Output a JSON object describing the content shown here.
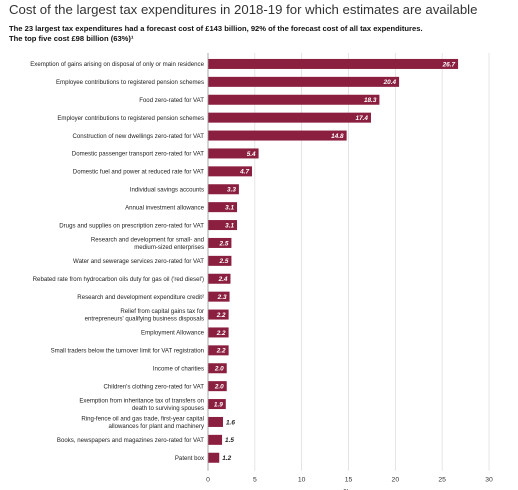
{
  "title": "Cost of the largest tax expenditures in 2018-19 for which estimates are available",
  "subtitle_lines": [
    "The 23 largest tax expenditures had a forecast cost of £143 billion, 92% of the forecast cost of all tax expenditures.",
    "The top five cost £98 billion (63%)¹"
  ],
  "colors": {
    "bar": "#8b1f3f",
    "value_text_inside": "#ffffff",
    "value_text_outside": "#222222",
    "grid": "#d9d9d9"
  },
  "chart_data": {
    "type": "bar",
    "orientation": "horizontal",
    "title": "Cost of the largest tax expenditures in 2018-19 for which estimates are available",
    "subtitle": "The 23 largest tax expenditures had a forecast cost of £143 billion, 92% of the forecast cost of all tax expenditures. The top five cost £98 billion (63%)¹",
    "categories": [
      "Exemption of gains arising on disposal of only or main residence",
      "Employee contributions to registered pension schemes",
      "Food zero-rated for VAT",
      "Employer contributions to registered pension schemes",
      "Construction of new dwellings zero-rated for VAT",
      "Domestic passenger transport zero-rated for VAT",
      "Domestic fuel and power at reduced rate for VAT",
      "Individual savings accounts",
      "Annual investment allowance",
      "Drugs and supplies on prescription zero-rated for VAT",
      "Research and development for small- and medium-sized enterprises",
      "Water and sewerage services zero-rated for VAT",
      "Rebated rate from hydrocarbon oils duty for gas oil ('red diesel')",
      "Research and development expenditure credit²",
      "Relief from capital gains tax for entrepreneurs' qualifying business disposals",
      "Employment Allowance",
      "Small traders below the turnover limit for VAT registration",
      "Income of charities",
      "Children's clothing zero-rated for VAT",
      "Exemption from inheritance tax of transfers on death to surviving spouses",
      "Ring-fence oil and gas trade, first-year capital allowances for plant and machinery",
      "Books, newspapers and magazines zero-rated for VAT",
      "Patent box"
    ],
    "category_lines": [
      [
        "Exemption of gains arising on disposal of only or main residence"
      ],
      [
        "Employee contributions to registered pension schemes"
      ],
      [
        "Food zero-rated for VAT"
      ],
      [
        "Employer contributions to registered pension schemes"
      ],
      [
        "Construction of new dwellings zero-rated for VAT"
      ],
      [
        "Domestic passenger transport zero-rated for VAT"
      ],
      [
        "Domestic fuel and power at reduced rate for VAT"
      ],
      [
        "Individual savings accounts"
      ],
      [
        "Annual investment allowance"
      ],
      [
        "Drugs and supplies on prescription zero-rated for VAT"
      ],
      [
        "Research and development for small- and",
        "medium-sized enterprises"
      ],
      [
        "Water and sewerage services zero-rated for VAT"
      ],
      [
        "Rebated rate from hydrocarbon oils duty for gas oil ('red diesel')"
      ],
      [
        "Research and development expenditure credit²"
      ],
      [
        "Relief from capital gains tax for",
        "entrepreneurs' qualifying business disposals"
      ],
      [
        "Employment Allowance"
      ],
      [
        "Small traders below the turnover limit for VAT registration"
      ],
      [
        "Income of charities"
      ],
      [
        "Children's clothing zero-rated for VAT"
      ],
      [
        "Exemption from inheritance tax of transfers on",
        "death to surviving spouses"
      ],
      [
        "Ring-fence oil and gas trade, first-year capital",
        "allowances for plant and machinery"
      ],
      [
        "Books, newspapers and magazines zero-rated for VAT"
      ],
      [
        "Patent box"
      ]
    ],
    "values": [
      26.7,
      20.4,
      18.3,
      17.4,
      14.8,
      5.4,
      4.7,
      3.3,
      3.1,
      3.1,
      2.5,
      2.5,
      2.4,
      2.3,
      2.2,
      2.2,
      2.2,
      2.0,
      2.0,
      1.9,
      1.6,
      1.5,
      1.2
    ],
    "value_labels": [
      "26.7",
      "20.4",
      "18.3",
      "17.4",
      "14.8",
      "5.4",
      "4.7",
      "3.3",
      "3.1",
      "3.1",
      "2.5",
      "2.5",
      "2.4",
      "2.3",
      "2.2",
      "2.2",
      "2.2",
      "2.0",
      "2.0",
      "1.9",
      "1.6",
      "1.5",
      "1.2"
    ],
    "xlim": [
      0,
      30
    ],
    "xticks": [
      0,
      5,
      10,
      15,
      20,
      25,
      30
    ],
    "xlabel": "£bn",
    "grid": true
  }
}
